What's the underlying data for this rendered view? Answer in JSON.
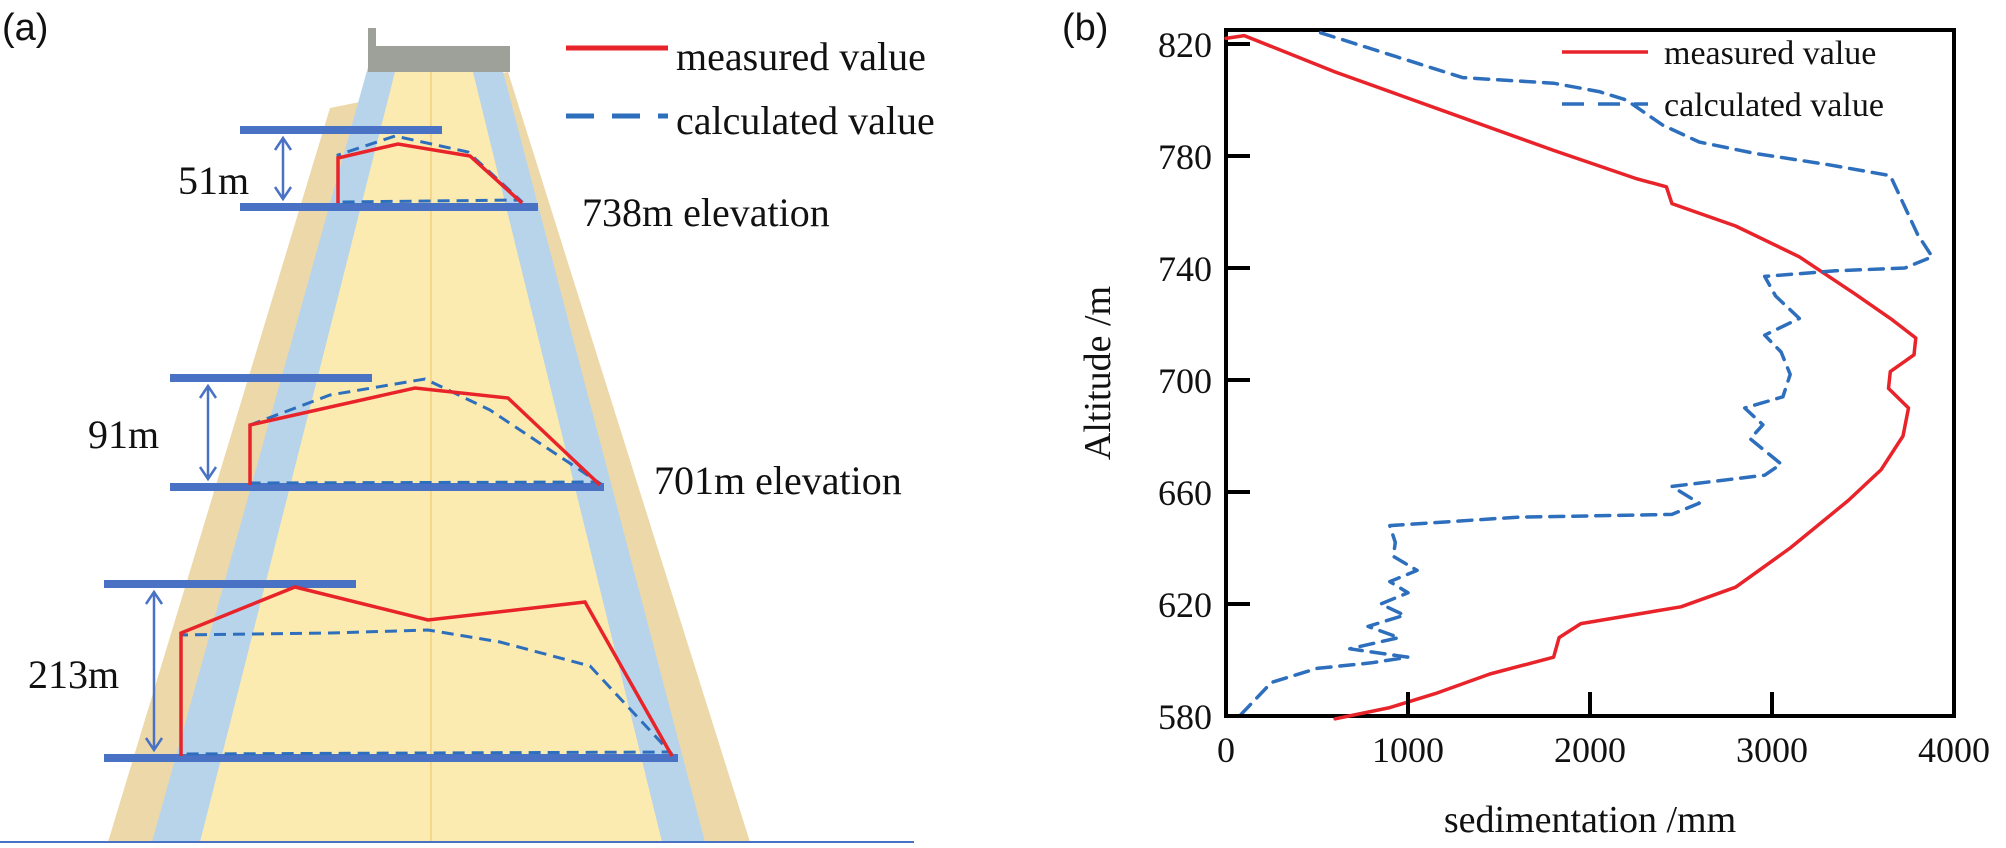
{
  "panel_a": {
    "label": "(a)",
    "legend": {
      "measured": "measured value",
      "calculated": "calculated value"
    },
    "sections": [
      {
        "height_label": "51m",
        "elevation_label": "738m elevation"
      },
      {
        "height_label": "91m",
        "elevation_label": "701m elevation"
      },
      {
        "height_label": "213m",
        "elevation_label": ""
      }
    ],
    "colors": {
      "shell": "#ecd8a8",
      "filter": "#b8d4ea",
      "core": "#fcebb0",
      "guide": "#4a72c4",
      "measured": "#e8232a",
      "calculated": "#2e6fbd",
      "crest": "#9ea09a",
      "ground": "#4a72c4"
    }
  },
  "panel_b": {
    "label": "(b)",
    "chart_data": {
      "type": "line",
      "xlabel": "sedimentation /mm",
      "ylabel": "Altitude /m",
      "xlim": [
        0,
        4000
      ],
      "ylim": [
        580,
        825
      ],
      "x_ticks": [
        "0",
        "1000",
        "2000",
        "3000",
        "4000"
      ],
      "y_ticks": [
        "580",
        "620",
        "660",
        "700",
        "740",
        "780",
        "820"
      ],
      "grid": false,
      "legend": "top-right",
      "series": [
        {
          "name": "measured value",
          "color": "#e8232a",
          "dash": "solid",
          "points": [
            [
              0,
              822
            ],
            [
              100,
              823
            ],
            [
              600,
              810
            ],
            [
              1200,
              796
            ],
            [
              1800,
              782
            ],
            [
              2250,
              772
            ],
            [
              2420,
              769
            ],
            [
              2450,
              763
            ],
            [
              2800,
              755
            ],
            [
              3150,
              744
            ],
            [
              3450,
              731
            ],
            [
              3650,
              722
            ],
            [
              3790,
              715
            ],
            [
              3780,
              709
            ],
            [
              3650,
              703
            ],
            [
              3640,
              697
            ],
            [
              3750,
              690
            ],
            [
              3720,
              680
            ],
            [
              3600,
              668
            ],
            [
              3420,
              657
            ],
            [
              3100,
              640
            ],
            [
              2800,
              626
            ],
            [
              2500,
              619
            ],
            [
              1950,
              613
            ],
            [
              1830,
              608
            ],
            [
              1800,
              601
            ],
            [
              1450,
              595
            ],
            [
              1150,
              588
            ],
            [
              900,
              583
            ],
            [
              600,
              579
            ]
          ]
        },
        {
          "name": "calculated value",
          "color": "#2e6fbd",
          "dash": "dashed",
          "points": [
            [
              520,
              824
            ],
            [
              1300,
              808
            ],
            [
              1800,
              806
            ],
            [
              2050,
              803
            ],
            [
              2200,
              800
            ],
            [
              2400,
              791
            ],
            [
              2600,
              785
            ],
            [
              2900,
              781
            ],
            [
              3300,
              777
            ],
            [
              3650,
              773
            ],
            [
              3800,
              752
            ],
            [
              3880,
              744
            ],
            [
              3730,
              740
            ],
            [
              3350,
              739
            ],
            [
              2960,
              737
            ],
            [
              3020,
              730
            ],
            [
              3150,
              722
            ],
            [
              2960,
              716
            ],
            [
              3050,
              710
            ],
            [
              3100,
              702
            ],
            [
              3060,
              694
            ],
            [
              2850,
              690
            ],
            [
              2950,
              684
            ],
            [
              2880,
              679
            ],
            [
              3050,
              670
            ],
            [
              2960,
              666
            ],
            [
              2450,
              662
            ],
            [
              2600,
              656
            ],
            [
              2450,
              652
            ],
            [
              1600,
              651
            ],
            [
              900,
              648
            ],
            [
              930,
              642
            ],
            [
              920,
              637
            ],
            [
              1050,
              632
            ],
            [
              900,
              628
            ],
            [
              1000,
              624
            ],
            [
              850,
              620
            ],
            [
              980,
              616
            ],
            [
              780,
              612
            ],
            [
              950,
              608
            ],
            [
              680,
              604
            ],
            [
              1000,
              601
            ],
            [
              800,
              599
            ],
            [
              500,
              597
            ],
            [
              250,
              592
            ],
            [
              60,
              579
            ]
          ]
        }
      ]
    }
  }
}
